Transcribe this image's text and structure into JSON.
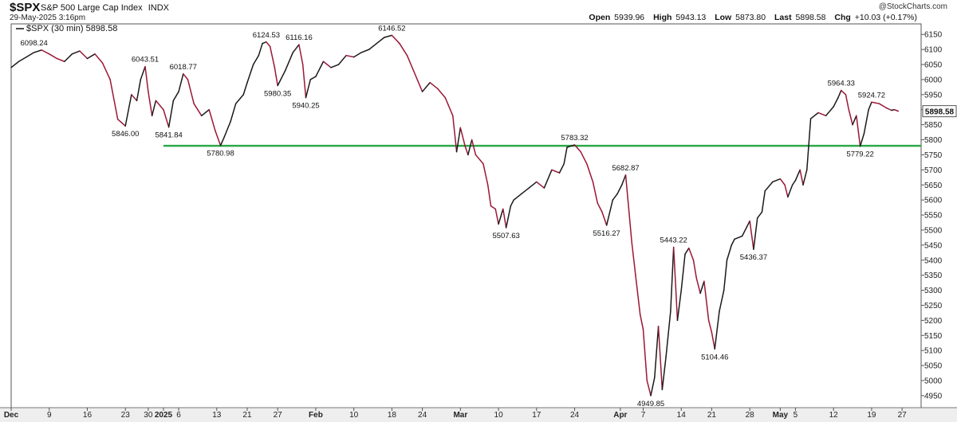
{
  "header": {
    "symbol": "$SPX",
    "name": "S&P 500 Large Cap Index",
    "exchange": "INDX",
    "date": "29-May-2025 3:16pm",
    "watermark": "@StockCharts.com",
    "open_label": "Open",
    "open": "5939.96",
    "high_label": "High",
    "high": "5943.13",
    "low_label": "Low",
    "low": "5873.80",
    "last_label": "Last",
    "last": "5898.58",
    "chg_label": "Chg",
    "chg": "+10.03 (+0.17%)"
  },
  "chart_data": {
    "type": "line",
    "legend": "$SPX (30 min) 5898.58",
    "last_value_label": "5898.58",
    "ylim": [
      4910,
      6185
    ],
    "y_ticks": [
      4950,
      5000,
      5050,
      5100,
      5150,
      5200,
      5250,
      5300,
      5350,
      5400,
      5450,
      5500,
      5550,
      5600,
      5650,
      5700,
      5750,
      5800,
      5850,
      5900,
      5950,
      6000,
      6050,
      6100,
      6150
    ],
    "x_ticks": [
      {
        "label": "Dec",
        "i": 0
      },
      {
        "label": "9",
        "i": 5
      },
      {
        "label": "16",
        "i": 10
      },
      {
        "label": "23",
        "i": 15
      },
      {
        "label": "30",
        "i": 18
      },
      {
        "label": "2025",
        "i": 20
      },
      {
        "label": "6",
        "i": 22
      },
      {
        "label": "13",
        "i": 27
      },
      {
        "label": "21",
        "i": 31
      },
      {
        "label": "27",
        "i": 35
      },
      {
        "label": "Feb",
        "i": 40
      },
      {
        "label": "10",
        "i": 45
      },
      {
        "label": "18",
        "i": 50
      },
      {
        "label": "24",
        "i": 54
      },
      {
        "label": "Mar",
        "i": 59
      },
      {
        "label": "10",
        "i": 64
      },
      {
        "label": "17",
        "i": 69
      },
      {
        "label": "24",
        "i": 74
      },
      {
        "label": "Apr",
        "i": 80
      },
      {
        "label": "7",
        "i": 83
      },
      {
        "label": "14",
        "i": 88
      },
      {
        "label": "21",
        "i": 92
      },
      {
        "label": "28",
        "i": 97
      },
      {
        "label": "May",
        "i": 101
      },
      {
        "label": "5",
        "i": 103
      },
      {
        "label": "12",
        "i": 108
      },
      {
        "label": "19",
        "i": 113
      },
      {
        "label": "27",
        "i": 117
      }
    ],
    "i_max": 119.5,
    "support_line": {
      "value": 5780,
      "from_i": 20,
      "to_i": 119.5,
      "color": "#2ea84a"
    },
    "series": [
      {
        "color": "#9b1736",
        "points": [
          [
            0,
            6040
          ],
          [
            1,
            6060
          ],
          [
            2,
            6075
          ],
          [
            3,
            6090
          ],
          [
            4,
            6098
          ],
          [
            5,
            6085
          ],
          [
            6,
            6070
          ],
          [
            7,
            6060
          ],
          [
            8,
            6085
          ],
          [
            9,
            6095
          ],
          [
            10,
            6070
          ],
          [
            11,
            6085
          ],
          [
            12,
            6055
          ],
          [
            13,
            6000
          ],
          [
            14,
            5868
          ],
          [
            15,
            5846
          ],
          [
            15.8,
            5950
          ],
          [
            16.5,
            5930
          ],
          [
            17,
            6000
          ],
          [
            17.6,
            6043
          ],
          [
            18,
            5960
          ],
          [
            18.5,
            5880
          ],
          [
            19,
            5930
          ],
          [
            20,
            5900
          ],
          [
            20.7,
            5842
          ],
          [
            21.3,
            5930
          ],
          [
            22,
            5960
          ],
          [
            22.6,
            6019
          ],
          [
            23.2,
            6000
          ],
          [
            24,
            5920
          ],
          [
            25,
            5880
          ],
          [
            26,
            5900
          ],
          [
            26.8,
            5830
          ],
          [
            27.5,
            5781
          ],
          [
            28,
            5810
          ],
          [
            28.8,
            5860
          ],
          [
            29.5,
            5920
          ],
          [
            30.5,
            5950
          ],
          [
            31,
            5990
          ],
          [
            31.8,
            6050
          ],
          [
            32.5,
            6080
          ],
          [
            33,
            6120
          ],
          [
            33.5,
            6125
          ],
          [
            34,
            6110
          ],
          [
            34.6,
            6040
          ],
          [
            35,
            5980
          ],
          [
            36,
            6030
          ],
          [
            37,
            6090
          ],
          [
            37.8,
            6116
          ],
          [
            38.3,
            6050
          ],
          [
            38.7,
            5940
          ],
          [
            39.3,
            6000
          ],
          [
            40,
            6010
          ],
          [
            41,
            6060
          ],
          [
            42,
            6040
          ],
          [
            43,
            6050
          ],
          [
            44,
            6080
          ],
          [
            45,
            6075
          ],
          [
            46,
            6090
          ],
          [
            47,
            6100
          ],
          [
            48,
            6120
          ],
          [
            49,
            6140
          ],
          [
            50,
            6147
          ],
          [
            51,
            6120
          ],
          [
            52,
            6080
          ],
          [
            53,
            6020
          ],
          [
            54,
            5960
          ],
          [
            55,
            5990
          ],
          [
            56,
            5970
          ],
          [
            57,
            5940
          ],
          [
            58,
            5880
          ],
          [
            58.5,
            5760
          ],
          [
            59,
            5840
          ],
          [
            59.6,
            5780
          ],
          [
            60,
            5750
          ],
          [
            60.5,
            5800
          ],
          [
            61,
            5750
          ],
          [
            62,
            5720
          ],
          [
            62.6,
            5650
          ],
          [
            63,
            5580
          ],
          [
            63.6,
            5570
          ],
          [
            64,
            5520
          ],
          [
            64.6,
            5570
          ],
          [
            65,
            5508
          ],
          [
            65.6,
            5580
          ],
          [
            66,
            5600
          ],
          [
            67,
            5620
          ],
          [
            68,
            5640
          ],
          [
            69,
            5660
          ],
          [
            70,
            5640
          ],
          [
            71,
            5700
          ],
          [
            72,
            5690
          ],
          [
            72.6,
            5720
          ],
          [
            73,
            5775
          ],
          [
            74,
            5783
          ],
          [
            74.8,
            5760
          ],
          [
            75.6,
            5720
          ],
          [
            76.4,
            5660
          ],
          [
            77,
            5590
          ],
          [
            77.6,
            5560
          ],
          [
            78.2,
            5516
          ],
          [
            79,
            5600
          ],
          [
            79.6,
            5620
          ],
          [
            80.2,
            5650
          ],
          [
            80.7,
            5683
          ],
          [
            81,
            5600
          ],
          [
            81.5,
            5460
          ],
          [
            82,
            5350
          ],
          [
            82.6,
            5220
          ],
          [
            83,
            5170
          ],
          [
            83.5,
            5000
          ],
          [
            84,
            4950
          ],
          [
            84.5,
            5010
          ],
          [
            85,
            5180
          ],
          [
            85.5,
            4970
          ],
          [
            86,
            5080
          ],
          [
            86.6,
            5230
          ],
          [
            87,
            5443
          ],
          [
            87.5,
            5200
          ],
          [
            88,
            5300
          ],
          [
            88.5,
            5420
          ],
          [
            89,
            5440
          ],
          [
            89.6,
            5400
          ],
          [
            90,
            5340
          ],
          [
            90.5,
            5290
          ],
          [
            91,
            5330
          ],
          [
            91.6,
            5200
          ],
          [
            92,
            5160
          ],
          [
            92.4,
            5105
          ],
          [
            93,
            5230
          ],
          [
            93.6,
            5300
          ],
          [
            94,
            5400
          ],
          [
            94.6,
            5450
          ],
          [
            95,
            5470
          ],
          [
            96,
            5480
          ],
          [
            96.6,
            5510
          ],
          [
            97,
            5530
          ],
          [
            97.5,
            5436
          ],
          [
            98,
            5540
          ],
          [
            98.6,
            5560
          ],
          [
            99,
            5630
          ],
          [
            100,
            5660
          ],
          [
            101,
            5670
          ],
          [
            101.6,
            5650
          ],
          [
            102,
            5610
          ],
          [
            102.6,
            5650
          ],
          [
            103,
            5665
          ],
          [
            103.6,
            5700
          ],
          [
            104,
            5650
          ],
          [
            104.5,
            5700
          ],
          [
            105,
            5870
          ],
          [
            106,
            5890
          ],
          [
            107,
            5880
          ],
          [
            108,
            5910
          ],
          [
            108.6,
            5940
          ],
          [
            109,
            5964
          ],
          [
            109.6,
            5950
          ],
          [
            110,
            5900
          ],
          [
            110.5,
            5850
          ],
          [
            111,
            5880
          ],
          [
            111.5,
            5779
          ],
          [
            112,
            5820
          ],
          [
            112.6,
            5900
          ],
          [
            113,
            5925
          ],
          [
            114,
            5920
          ],
          [
            115,
            5905
          ],
          [
            115.6,
            5898
          ],
          [
            116,
            5900
          ],
          [
            116.5,
            5895
          ]
        ]
      }
    ],
    "annotations": [
      {
        "i": 3,
        "y": 6098.24,
        "text": "6098.24",
        "pos": "above"
      },
      {
        "i": 15,
        "y": 5846.0,
        "text": "5846.00",
        "pos": "below"
      },
      {
        "i": 17.6,
        "y": 6043.51,
        "text": "6043.51",
        "pos": "above"
      },
      {
        "i": 20.7,
        "y": 5841.84,
        "text": "5841.84",
        "pos": "below"
      },
      {
        "i": 22.6,
        "y": 6018.77,
        "text": "6018.77",
        "pos": "above"
      },
      {
        "i": 27.5,
        "y": 5780.98,
        "text": "5780.98",
        "pos": "below"
      },
      {
        "i": 33.5,
        "y": 6124.53,
        "text": "6124.53",
        "pos": "above"
      },
      {
        "i": 35,
        "y": 5980.35,
        "text": "5980.35",
        "pos": "below"
      },
      {
        "i": 37.8,
        "y": 6116.16,
        "text": "6116.16",
        "pos": "above"
      },
      {
        "i": 38.7,
        "y": 5940.25,
        "text": "5940.25",
        "pos": "below"
      },
      {
        "i": 50,
        "y": 6146.52,
        "text": "6146.52",
        "pos": "above"
      },
      {
        "i": 65,
        "y": 5507.63,
        "text": "5507.63",
        "pos": "below"
      },
      {
        "i": 74,
        "y": 5783.32,
        "text": "5783.32",
        "pos": "above"
      },
      {
        "i": 78.2,
        "y": 5516.27,
        "text": "5516.27",
        "pos": "below"
      },
      {
        "i": 80.7,
        "y": 5682.87,
        "text": "5682.87",
        "pos": "above"
      },
      {
        "i": 84,
        "y": 4949.85,
        "text": "4949.85",
        "pos": "below"
      },
      {
        "i": 87,
        "y": 5443.22,
        "text": "5443.22",
        "pos": "above"
      },
      {
        "i": 92.4,
        "y": 5104.46,
        "text": "5104.46",
        "pos": "below"
      },
      {
        "i": 97.5,
        "y": 5436.37,
        "text": "5436.37",
        "pos": "below"
      },
      {
        "i": 109,
        "y": 5964.33,
        "text": "5964.33",
        "pos": "above"
      },
      {
        "i": 111.5,
        "y": 5779.22,
        "text": "5779.22",
        "pos": "below"
      },
      {
        "i": 113,
        "y": 5924.72,
        "text": "5924.72",
        "pos": "above"
      }
    ]
  }
}
